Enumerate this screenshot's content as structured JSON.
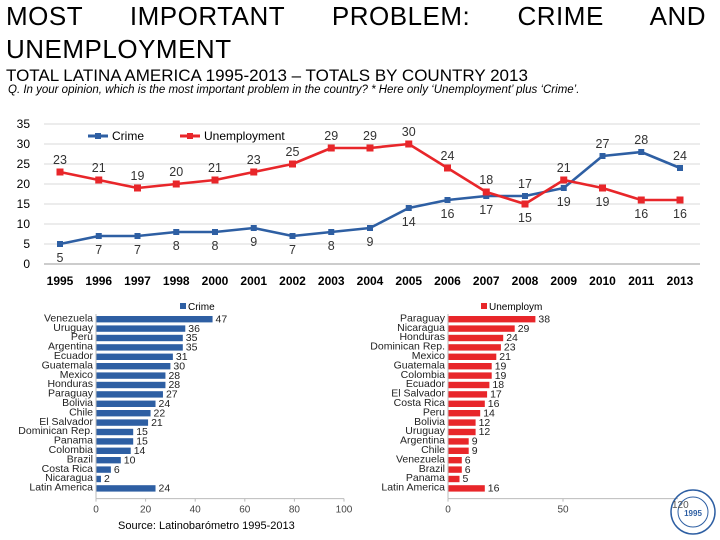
{
  "title": "MOST IMPORTANT PROBLEM: CRIME AND UNEMPLOYMENT",
  "subtitle": "TOTAL LATINA AMERICA 1995-2013 – TOTALS BY COUNTRY 2013",
  "question": "Q. In your opinion, which is the most important problem in the country? * Here only ‘Unemployment’ plus ‘Crime’.",
  "source": "Source: Latinobarómetro 1995-2013",
  "page_number": "120",
  "seal_text": "LATINOBARÓMETRO",
  "colors": {
    "crime": "#2e5fa3",
    "unemployment": "#e8262a",
    "grid": "#d9d9d9"
  },
  "chart_data": [
    {
      "type": "line",
      "title": "TOTAL LATINA AMERICA 1995-2013",
      "categories": [
        "1995",
        "1996",
        "1997",
        "1998",
        "2000",
        "2001",
        "2002",
        "2003",
        "2004",
        "2005",
        "2006",
        "2007",
        "2008",
        "2009",
        "2010",
        "2011",
        "2013"
      ],
      "ylim": [
        0,
        35
      ],
      "yticks": [
        "0",
        "5",
        "10",
        "15",
        "20",
        "25",
        "30",
        "35"
      ],
      "legend_position": "top-left",
      "series": [
        {
          "name": "Crime",
          "values": [
            5,
            7,
            7,
            8,
            8,
            9,
            7,
            8,
            9,
            14,
            16,
            17,
            17,
            19,
            27,
            28,
            24
          ]
        },
        {
          "name": "Unemployment",
          "values": [
            23,
            21,
            19,
            20,
            21,
            23,
            25,
            29,
            29,
            30,
            24,
            18,
            15,
            21,
            19,
            16,
            16
          ]
        }
      ]
    },
    {
      "type": "bar",
      "title": "Crime",
      "orientation": "horizontal",
      "xlim": [
        0,
        100
      ],
      "xticks": [
        "0",
        "20",
        "40",
        "60",
        "80",
        "100"
      ],
      "categories": [
        "Venezuela",
        "Uruguay",
        "Perú",
        "Argentina",
        "Ecuador",
        "Guatemala",
        "Mexico",
        "Honduras",
        "Paraguay",
        "Bolivia",
        "Chile",
        "El Salvador",
        "Dominican Rep.",
        "Panama",
        "Colombia",
        "Brazil",
        "Costa Rica",
        "Nicaragua",
        "Latin America"
      ],
      "values": [
        47,
        36,
        35,
        35,
        31,
        30,
        28,
        28,
        27,
        24,
        22,
        21,
        15,
        15,
        14,
        10,
        6,
        2,
        24
      ]
    },
    {
      "type": "bar",
      "title": "Unemploym",
      "orientation": "horizontal",
      "xlim": [
        0,
        100
      ],
      "xticks": [
        "0",
        "50"
      ],
      "categories": [
        "Paraguay",
        "Nicaragua",
        "Honduras",
        "Dominican Rep.",
        "Mexico",
        "Guatemala",
        "Colombia",
        "Ecuador",
        "El Salvador",
        "Costa Rica",
        "Peru",
        "Bolivia",
        "Uruguay",
        "Argentina",
        "Chile",
        "Venezuela",
        "Brazil",
        "Panama",
        "Latin America"
      ],
      "values": [
        38,
        29,
        24,
        23,
        21,
        19,
        19,
        18,
        17,
        16,
        14,
        12,
        12,
        9,
        9,
        6,
        6,
        5,
        16
      ]
    }
  ]
}
